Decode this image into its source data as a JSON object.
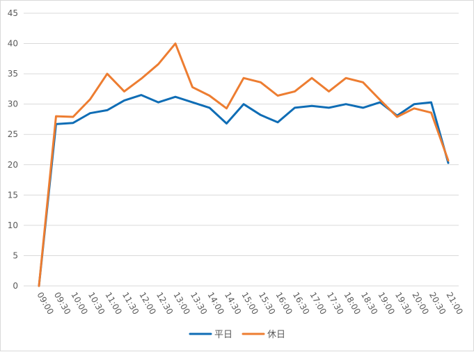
{
  "chart_data": {
    "type": "line",
    "title": "",
    "xlabel": "",
    "ylabel": "",
    "ylim": [
      0,
      45
    ],
    "yticks": [
      0,
      5,
      10,
      15,
      20,
      25,
      30,
      35,
      40,
      45
    ],
    "grid": true,
    "legend_position": "bottom",
    "categories": [
      "09:00",
      "09:30",
      "10:00",
      "10:30",
      "11:00",
      "11:30",
      "12:00",
      "12:30",
      "13:00",
      "13:30",
      "14:00",
      "14:30",
      "15:00",
      "15:30",
      "16:00",
      "16:30",
      "17:00",
      "17:30",
      "18:00",
      "18:30",
      "19:00",
      "19:30",
      "20:00",
      "20:30",
      "21:00"
    ],
    "series": [
      {
        "name": "平日",
        "color": "#0f6db5",
        "values": [
          0,
          26.7,
          26.9,
          28.5,
          29.0,
          30.6,
          31.5,
          30.3,
          31.2,
          30.3,
          29.4,
          26.8,
          30.0,
          28.2,
          27.0,
          29.4,
          29.7,
          29.4,
          30.0,
          29.4,
          30.3,
          28.1,
          30.0,
          30.3,
          20.3
        ]
      },
      {
        "name": "休日",
        "color": "#ed7d31",
        "values": [
          0,
          28.0,
          27.9,
          30.8,
          35.0,
          32.1,
          34.2,
          36.6,
          40.0,
          32.8,
          31.4,
          29.3,
          34.3,
          33.6,
          31.4,
          32.1,
          34.3,
          32.1,
          34.3,
          33.6,
          30.7,
          27.9,
          29.3,
          28.6,
          20.7
        ]
      }
    ]
  }
}
